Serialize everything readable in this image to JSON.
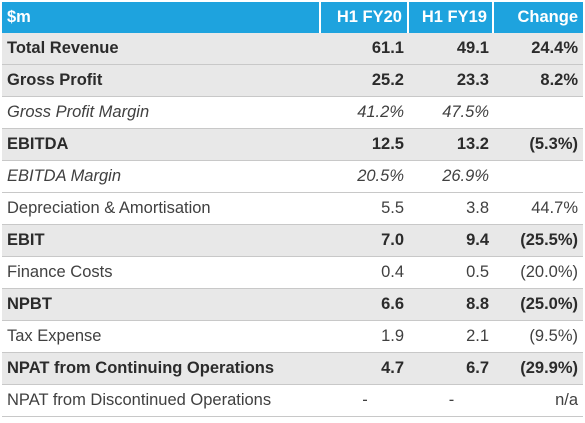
{
  "table": {
    "headers": [
      "$m",
      "H1 FY20",
      "H1 FY19",
      "Change"
    ],
    "rows": [
      {
        "style": "bold",
        "label": "Total Revenue",
        "h1fy20": "61.1",
        "h1fy19": "49.1",
        "change": "24.4%"
      },
      {
        "style": "bold",
        "label": "Gross Profit",
        "h1fy20": "25.2",
        "h1fy19": "23.3",
        "change": "8.2%"
      },
      {
        "style": "italic",
        "label": "Gross Profit Margin",
        "h1fy20": "41.2%",
        "h1fy19": "47.5%",
        "change": ""
      },
      {
        "style": "bold",
        "label": "EBITDA",
        "h1fy20": "12.5",
        "h1fy19": "13.2",
        "change": "(5.3%)"
      },
      {
        "style": "italic",
        "label": "EBITDA Margin",
        "h1fy20": "20.5%",
        "h1fy19": "26.9%",
        "change": ""
      },
      {
        "style": "normal",
        "label": "Depreciation & Amortisation",
        "h1fy20": "5.5",
        "h1fy19": "3.8",
        "change": "44.7%"
      },
      {
        "style": "bold",
        "label": "EBIT",
        "h1fy20": "7.0",
        "h1fy19": "9.4",
        "change": "(25.5%)"
      },
      {
        "style": "normal",
        "label": "Finance Costs",
        "h1fy20": "0.4",
        "h1fy19": "0.5",
        "change": "(20.0%)"
      },
      {
        "style": "bold",
        "label": "NPBT",
        "h1fy20": "6.6",
        "h1fy19": "8.8",
        "change": "(25.0%)"
      },
      {
        "style": "normal",
        "label": "Tax Expense",
        "h1fy20": "1.9",
        "h1fy19": "2.1",
        "change": "(9.5%)"
      },
      {
        "style": "bold",
        "label": "NPAT from Continuing Operations",
        "h1fy20": "4.7",
        "h1fy19": "6.7",
        "change": "(29.9%)"
      },
      {
        "style": "normal",
        "label": "NPAT from Discontinued Operations",
        "h1fy20": "-",
        "h1fy19": "-",
        "change": "n/a"
      }
    ]
  }
}
